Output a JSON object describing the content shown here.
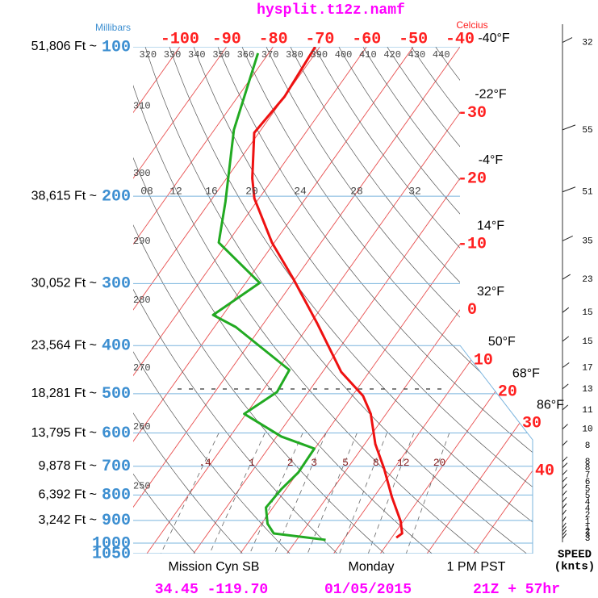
{
  "chart_data": {
    "type": "skewt",
    "title": "hysplit.t12z.namf",
    "y_label": "Millibars",
    "x_label": "Celcius",
    "ylim": [
      100,
      1050
    ],
    "log_scale": true,
    "xlim": [
      -110,
      -40
    ],
    "pressure_levels": [
      100,
      200,
      300,
      400,
      500,
      600,
      700,
      800,
      900,
      1000,
      1050
    ],
    "altitude_labels": [
      "51,806 Ft ~",
      "38,615 Ft ~",
      "30,052 Ft ~",
      "23,564 Ft ~",
      "18,281 Ft ~",
      "13,795 Ft ~",
      "9,878 Ft ~",
      "6,392 Ft ~",
      "3,242 Ft ~",
      null,
      null
    ],
    "temperature_ticks": [
      -100,
      -90,
      -80,
      -70,
      -60,
      -50,
      -40,
      -30,
      -20,
      -10,
      0,
      10,
      20,
      30,
      40
    ],
    "fahrenheit_labels": [
      null,
      null,
      null,
      null,
      null,
      null,
      "-40°F",
      "-22°F",
      "-4°F",
      "14°F",
      "32°F",
      "50°F",
      "68°F",
      "86°F",
      null
    ],
    "theta_labels": [
      250,
      260,
      270,
      280,
      290,
      300,
      310,
      320,
      330,
      340,
      350,
      360,
      370,
      380,
      390,
      400,
      410,
      420,
      430,
      440
    ],
    "mixing_ratio_labels": [
      {
        "value": 0.4,
        "label": ".4"
      },
      1,
      2,
      3,
      5,
      8,
      12,
      20
    ],
    "theta_w_labels": [
      "08",
      "12",
      "16",
      "20",
      "24",
      "28",
      "32"
    ],
    "series": [
      {
        "color": "#ee1111",
        "pressure": [
          100,
          126,
          149,
          184,
          202,
          248,
          293,
          361,
          452,
          505,
          549,
          632,
          708,
          808,
          903,
          956,
          975
        ],
        "values": [
          -71,
          -70,
          -71,
          -64.5,
          -61,
          -50.5,
          -40.5,
          -28.5,
          -16,
          -7.7,
          -3.3,
          2.3,
          7.9,
          13.9,
          19.4,
          21.6,
          21
        ]
      },
      {
        "color": "#22aa22",
        "pressure": [
          103,
          147,
          205,
          248,
          299,
          347,
          367,
          448,
          496,
          549,
          610,
          645,
          721,
          778,
          848,
          914,
          956,
          985
        ],
        "values": [
          -82.3,
          -75.8,
          -66.7,
          -61.9,
          -47,
          -52.1,
          -45.4,
          -27.4,
          -26.7,
          -30.4,
          -19,
          -10.1,
          -9.9,
          -11,
          -11.5,
          -8.7,
          -5.9,
          6.2
        ]
      }
    ],
    "wind": {
      "pressure": [
        98,
        147,
        196,
        246,
        294,
        343,
        392,
        443,
        489,
        539,
        589,
        636,
        685,
        705,
        729,
        753,
        777,
        802,
        827,
        851,
        877,
        905,
        931,
        947,
        963,
        979
      ],
      "speed": [
        32,
        55,
        51,
        35,
        23,
        15,
        15,
        17,
        13,
        11,
        10,
        8,
        8,
        8,
        7,
        6,
        5,
        5,
        4,
        4,
        2,
        1,
        1,
        2,
        3,
        3
      ],
      "label": "SPEED",
      "unit": "(knts)"
    },
    "footer": {
      "location": "Mission Cyn SB",
      "day": "Monday",
      "time": "1 PM PST",
      "coords": "34.45 -119.70",
      "date": "01/05/2015",
      "run": "21Z + 57hr"
    }
  }
}
